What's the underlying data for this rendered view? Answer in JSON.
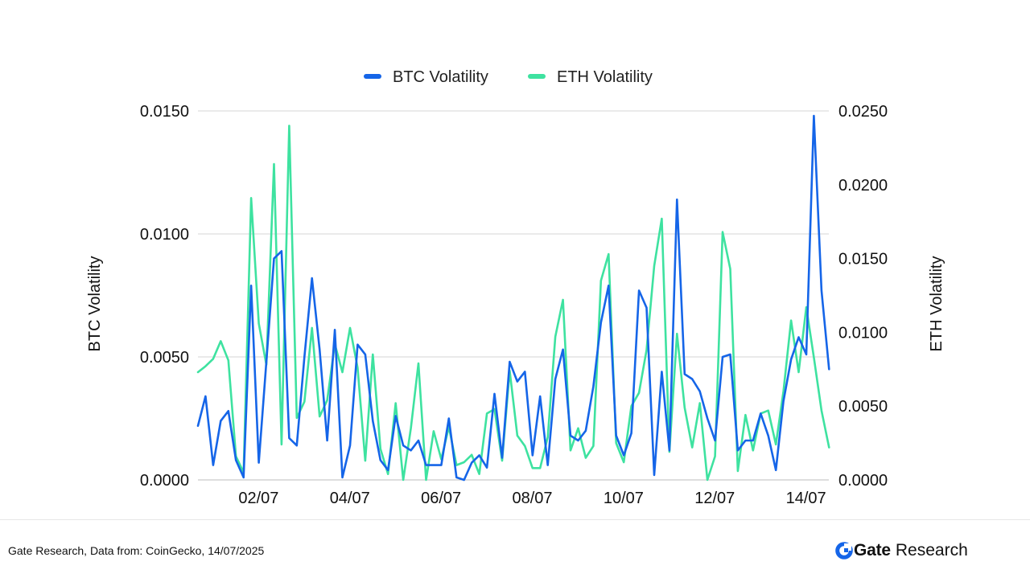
{
  "chart_data": {
    "type": "line",
    "legend_position": "top-center",
    "grid": true,
    "xlabel": "",
    "ylabel": "BTC Volatility",
    "y2label": "ETH Volatility",
    "ylim": [
      0,
      0.015
    ],
    "y2lim": [
      0,
      0.025
    ],
    "y_ticks": [
      "0.0000",
      "0.0050",
      "0.0100",
      "0.0150"
    ],
    "y2_ticks": [
      "0.0000",
      "0.0050",
      "0.0100",
      "0.0150",
      "0.0200",
      "0.0250"
    ],
    "x_range": [
      0.67,
      14.5
    ],
    "x_ticks": [
      {
        "x": 2,
        "label": "02/07"
      },
      {
        "x": 4,
        "label": "04/07"
      },
      {
        "x": 6,
        "label": "06/07"
      },
      {
        "x": 8,
        "label": "08/07"
      },
      {
        "x": 10,
        "label": "10/07"
      },
      {
        "x": 12,
        "label": "12/07"
      },
      {
        "x": 14,
        "label": "14/07"
      }
    ],
    "series": [
      {
        "name": "BTC Volatility",
        "axis": "left",
        "color": "#1565e8",
        "x_start": 0.67,
        "x_step": 0.1667,
        "values": [
          0.0022,
          0.0034,
          0.0006,
          0.0024,
          0.0028,
          0.0008,
          0.0001,
          0.0079,
          0.0007,
          0.0048,
          0.009,
          0.0093,
          0.0017,
          0.0014,
          0.005,
          0.0082,
          0.0053,
          0.0016,
          0.0061,
          0.0001,
          0.0014,
          0.0055,
          0.0051,
          0.0024,
          0.0008,
          0.0004,
          0.0026,
          0.0014,
          0.0012,
          0.0016,
          0.0006,
          0.0006,
          0.0006,
          0.0025,
          0.0001,
          0.0,
          0.0007,
          0.001,
          0.0005,
          0.0035,
          0.0009,
          0.0048,
          0.004,
          0.0044,
          0.001,
          0.0034,
          0.0006,
          0.0041,
          0.0053,
          0.0018,
          0.0016,
          0.002,
          0.0038,
          0.0064,
          0.0079,
          0.0018,
          0.001,
          0.0019,
          0.0077,
          0.007,
          0.0002,
          0.0044,
          0.0012,
          0.0114,
          0.0043,
          0.0041,
          0.0036,
          0.0025,
          0.0016,
          0.005,
          0.0051,
          0.0012,
          0.0016,
          0.0016,
          0.0027,
          0.0018,
          0.0004,
          0.0032,
          0.0049,
          0.0058,
          0.0051,
          0.0148,
          0.0077,
          0.0045
        ]
      },
      {
        "name": "ETH Volatility",
        "axis": "right",
        "color": "#3ee2a0",
        "x_start": 0.67,
        "x_step": 0.1667,
        "values": [
          0.0073,
          0.0077,
          0.0082,
          0.0094,
          0.0081,
          0.0016,
          0.0005,
          0.0191,
          0.0106,
          0.0078,
          0.0214,
          0.0024,
          0.024,
          0.0042,
          0.0053,
          0.0103,
          0.0043,
          0.0054,
          0.0092,
          0.0073,
          0.0103,
          0.0076,
          0.0013,
          0.0085,
          0.0021,
          0.0004,
          0.0052,
          0.0,
          0.0035,
          0.0079,
          0.0,
          0.0033,
          0.0014,
          0.0036,
          0.001,
          0.0012,
          0.0017,
          0.0004,
          0.0045,
          0.0048,
          0.0013,
          0.0074,
          0.003,
          0.0023,
          0.0008,
          0.0008,
          0.0029,
          0.0097,
          0.0122,
          0.002,
          0.0035,
          0.0015,
          0.0023,
          0.0135,
          0.0153,
          0.0025,
          0.0012,
          0.005,
          0.0059,
          0.0088,
          0.0145,
          0.0177,
          0.0019,
          0.0099,
          0.0049,
          0.0022,
          0.0052,
          0.0,
          0.0016,
          0.0168,
          0.0143,
          0.0006,
          0.0044,
          0.002,
          0.0045,
          0.0047,
          0.0024,
          0.006,
          0.0108,
          0.0073,
          0.0117,
          0.0083,
          0.0047,
          0.0022
        ]
      }
    ]
  },
  "footer": {
    "source": "Gate Research, Data from: CoinGecko, 14/07/2025"
  },
  "brand": {
    "name": "Gate",
    "suffix": "Research",
    "color": "#1565e8",
    "icon": "gate-logo-icon"
  }
}
